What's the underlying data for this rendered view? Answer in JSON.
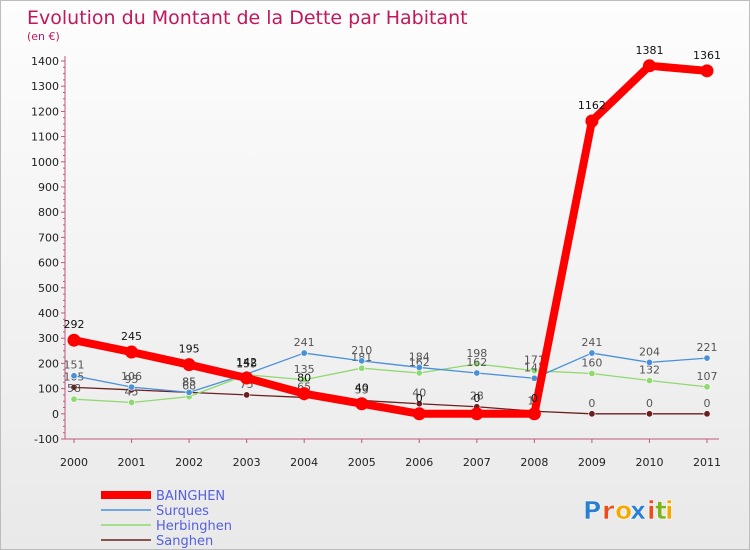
{
  "chart_data": {
    "type": "line",
    "title": "Evolution du Montant de la Dette par Habitant",
    "subtitle": "(en €)",
    "x": [
      "2000",
      "2001",
      "2002",
      "2003",
      "2004",
      "2005",
      "2006",
      "2007",
      "2008",
      "2009",
      "2010",
      "2011"
    ],
    "ylim": [
      -100,
      1400
    ],
    "yticks": [
      "-100",
      "0",
      "100",
      "200",
      "300",
      "400",
      "500",
      "600",
      "700",
      "800",
      "900",
      "1000",
      "1100",
      "1200",
      "1300",
      "1400"
    ],
    "grid": false,
    "legend": "bottom-left",
    "series": [
      {
        "name": "BAINGHEN",
        "color": "#ff0000",
        "values": [
          292,
          245,
          195,
          142,
          80,
          40,
          0,
          0,
          0,
          1162,
          1381,
          1361
        ],
        "labels": [
          "292",
          "245",
          "195",
          "142",
          "80",
          "40",
          "0",
          "0",
          "0",
          "1162",
          "1381",
          "1361"
        ]
      },
      {
        "name": "Surques",
        "color": "#4a90d9",
        "values": [
          151,
          106,
          85,
          158,
          241,
          210,
          184,
          162,
          141,
          241,
          204,
          221
        ],
        "labels": [
          "151",
          "106",
          "85",
          "158",
          "241",
          "210",
          "184",
          "162",
          "141",
          "241",
          "204",
          "221"
        ]
      },
      {
        "name": "Herbinghen",
        "color": "#8fd96e",
        "values": [
          58,
          45,
          68,
          155,
          135,
          181,
          162,
          198,
          171,
          160,
          132,
          107
        ],
        "labels": [
          "58",
          "45",
          "68",
          "155",
          "135",
          "181",
          "162",
          "198",
          "171",
          "160",
          "132",
          "107"
        ]
      },
      {
        "name": "Sanghen",
        "color": "#6b1f1f",
        "values": [
          105,
          95,
          85,
          75,
          65,
          53,
          40,
          28,
          10,
          0,
          0,
          0
        ],
        "labels": [
          "105",
          "95",
          "85",
          "75",
          "65",
          "53",
          "40",
          "28",
          "10",
          "0",
          "0",
          "0"
        ]
      }
    ]
  },
  "brand": {
    "text": "Proxiti",
    "letters": [
      "P",
      "r",
      "o",
      "x",
      "i",
      "t",
      "i"
    ],
    "colors": [
      "#2a7fd4",
      "#e94e1b",
      "#f6a800",
      "#2a7fd4",
      "#e94e1b",
      "#7ab51d",
      "#f6a800"
    ]
  }
}
